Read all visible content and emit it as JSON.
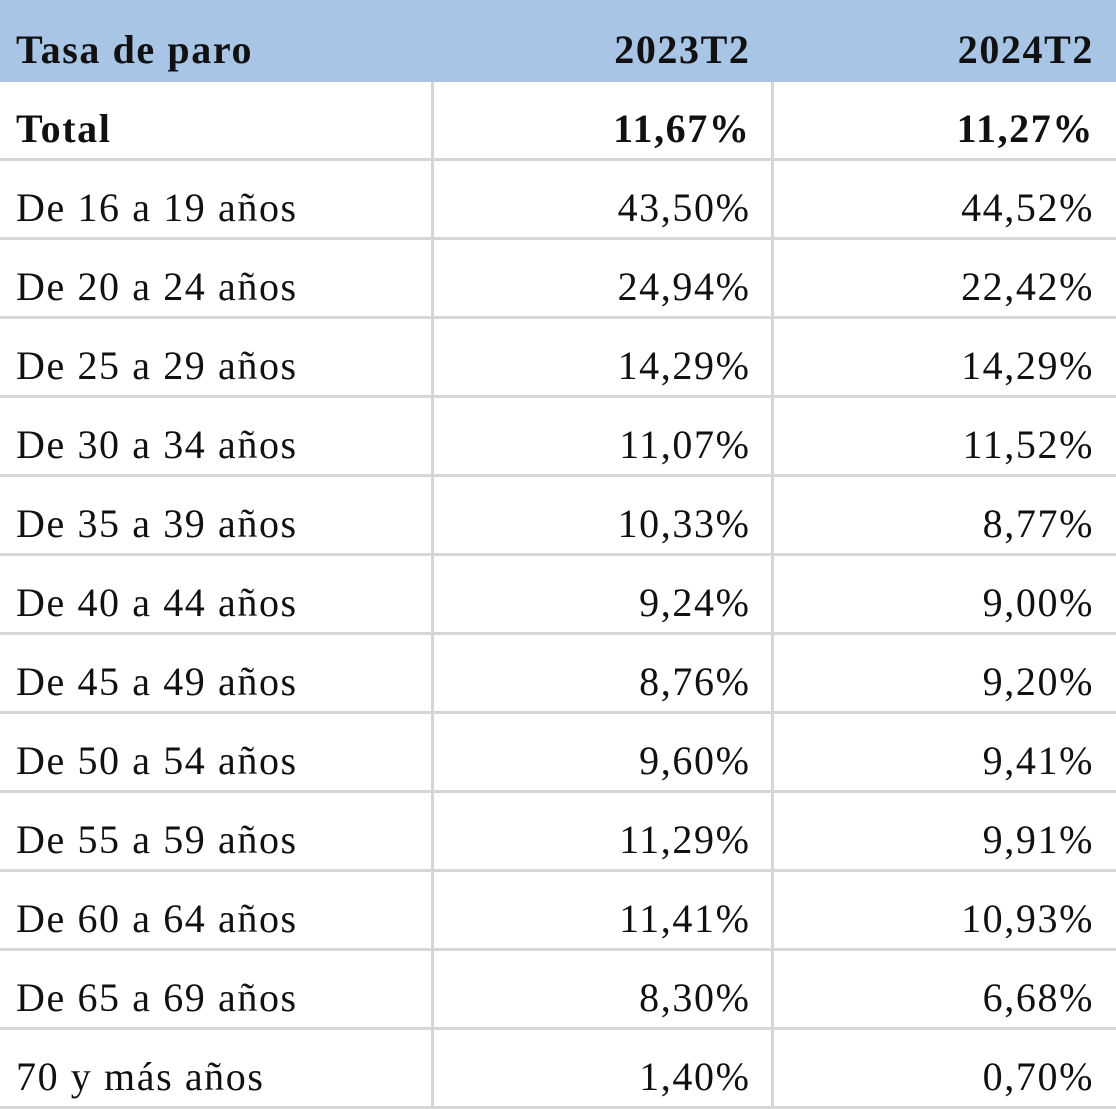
{
  "table": {
    "header": [
      "Tasa de paro",
      "2023T2",
      "2024T2"
    ],
    "rows": [
      [
        "Total",
        "11,67%",
        "11,27%"
      ],
      [
        "De 16 a 19 años",
        "43,50%",
        "44,52%"
      ],
      [
        "De 20 a 24 años",
        "24,94%",
        "22,42%"
      ],
      [
        "De 25 a 29 años",
        "14,29%",
        "14,29%"
      ],
      [
        "De 30 a 34 años",
        "11,07%",
        "11,52%"
      ],
      [
        "De 35 a 39 años",
        "10,33%",
        "8,77%"
      ],
      [
        "De 40 a 44 años",
        "9,24%",
        "9,00%"
      ],
      [
        "De 45 a 49 años",
        "8,76%",
        "9,20%"
      ],
      [
        "De 50 a 54 años",
        "9,60%",
        "9,41%"
      ],
      [
        "De 55 a 59 años",
        "11,29%",
        "9,91%"
      ],
      [
        "De 60 a 64 años",
        "11,41%",
        "10,93%"
      ],
      [
        "De 65 a 69 años",
        "8,30%",
        "6,68%"
      ],
      [
        "70 y más años",
        "1,40%",
        "0,70%"
      ]
    ]
  }
}
